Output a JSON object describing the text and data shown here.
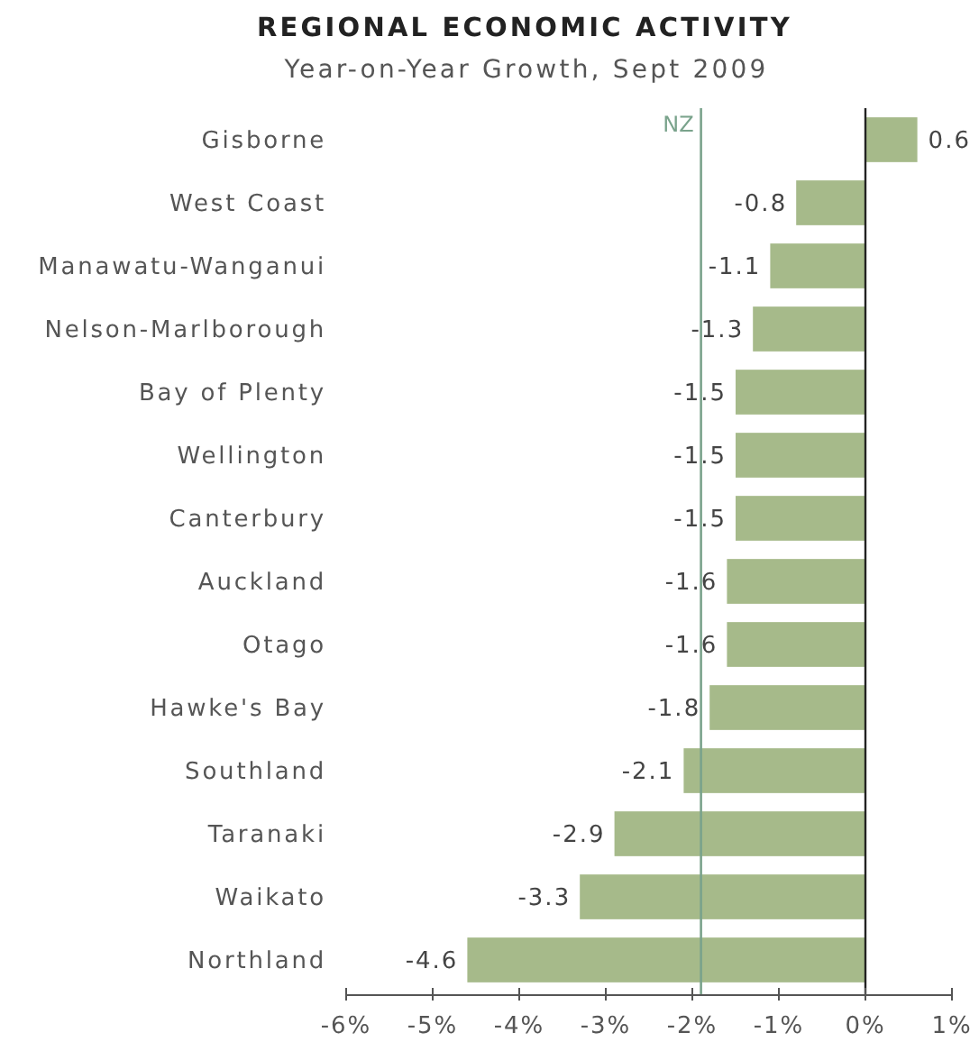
{
  "chart_data": {
    "type": "bar",
    "orientation": "horizontal",
    "title": "REGIONAL ECONOMIC ACTIVITY",
    "subtitle": "Year-on-Year Growth, Sept 2009",
    "categories": [
      "Gisborne",
      "West Coast",
      "Manawatu-Wanganui",
      "Nelson-Marlborough",
      "Bay of Plenty",
      "Wellington",
      "Canterbury",
      "Auckland",
      "Otago",
      "Hawke's Bay",
      "Southland",
      "Taranaki",
      "Waikato",
      "Northland"
    ],
    "values": [
      0.6,
      -0.8,
      -1.1,
      -1.3,
      -1.5,
      -1.5,
      -1.5,
      -1.6,
      -1.6,
      -1.8,
      -2.1,
      -2.9,
      -3.3,
      -4.6
    ],
    "color": "#a6ba8a",
    "xlim": [
      -6,
      1
    ],
    "xticks": [
      {
        "value": -6,
        "label": "-6%"
      },
      {
        "value": -5,
        "label": "-5%"
      },
      {
        "value": -4,
        "label": "-4%"
      },
      {
        "value": -3,
        "label": "-3%"
      },
      {
        "value": -2,
        "label": "-2%"
      },
      {
        "value": -1,
        "label": "-1%"
      },
      {
        "value": 0,
        "label": "0%"
      },
      {
        "value": 1,
        "label": "1%"
      }
    ],
    "ref_lines": [
      {
        "axis": "x",
        "value": -1.9,
        "label": "NZ",
        "color": "#7aa38c"
      }
    ],
    "data_labels": true
  }
}
